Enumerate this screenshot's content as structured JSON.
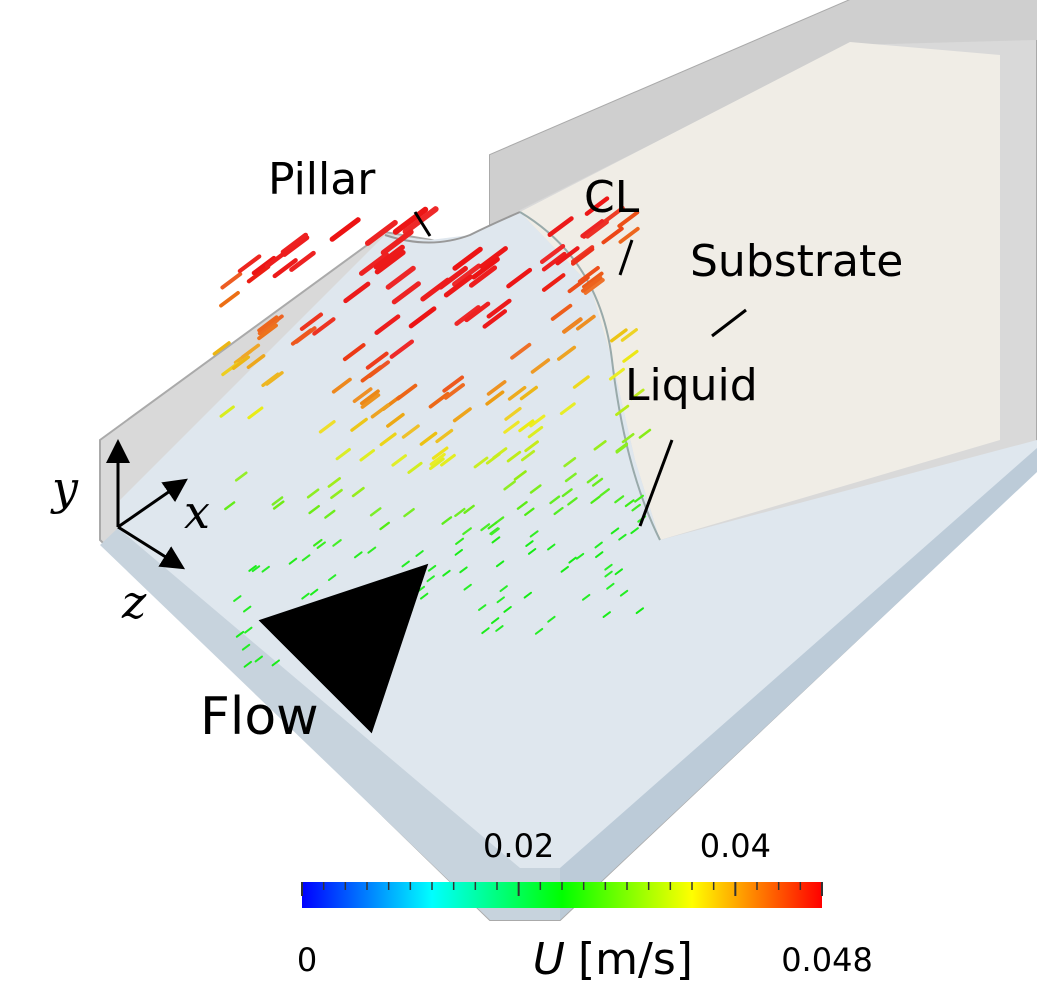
{
  "labels": {
    "pillar": "Pillar",
    "contact_line": "CL",
    "substrate": "Substrate",
    "liquid": "Liquid",
    "flow": "Flow"
  },
  "axes": {
    "y": "y",
    "x": "x",
    "z": "z"
  },
  "colorbar": {
    "symbol": "U",
    "unit": "[m/s]",
    "lim": [
      0,
      0.048
    ],
    "ticks": [
      0,
      0.02,
      0.04,
      0.048
    ],
    "minor_ticks": [
      0.002,
      0.004,
      0.006,
      0.008,
      0.01,
      0.012,
      0.014,
      0.016,
      0.018,
      0.022,
      0.024,
      0.026,
      0.028,
      0.03,
      0.032,
      0.034,
      0.036,
      0.038,
      0.042,
      0.044,
      0.046
    ],
    "colormap": [
      "#0000ff",
      "#00ffff",
      "#00ff00",
      "#ffff00",
      "#ff0000"
    ]
  }
}
